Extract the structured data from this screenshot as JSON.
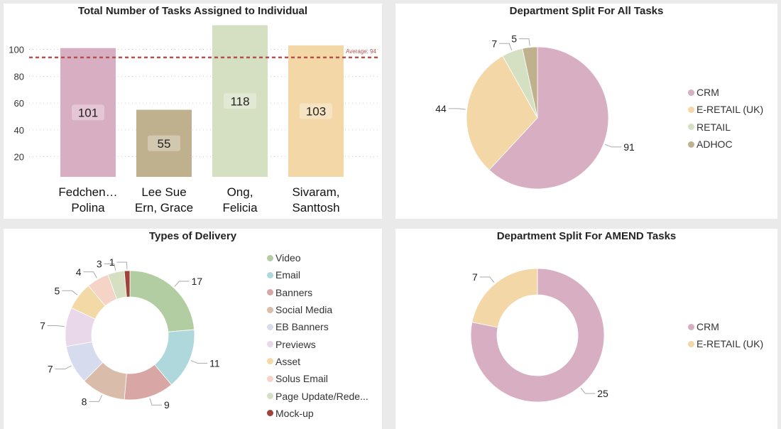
{
  "chart_data": [
    {
      "type": "bar",
      "title": "Total Number of Tasks Assigned to Individual",
      "categories": [
        "Fedchen… Polina",
        "Lee Sue Ern, Grace",
        "Ong, Felicia",
        "Sivaram, Santtosh"
      ],
      "category_lines": [
        [
          "Fedchen…",
          "Polina"
        ],
        [
          "Lee Sue",
          "Ern, Grace"
        ],
        [
          "Ong,",
          "Felicia"
        ],
        [
          "Sivaram,",
          "Santtosh"
        ]
      ],
      "values": [
        101,
        55,
        118,
        103
      ],
      "colors": [
        "#d8aec2",
        "#bfb18e",
        "#d5dfc2",
        "#f3d7a7"
      ],
      "yticks": [
        "20",
        "40",
        "60",
        "80",
        "100"
      ],
      "ylim": [
        5,
        122
      ],
      "grid": true,
      "reference_line": {
        "label": "Average: 94",
        "value": 94,
        "color": "#b5504e"
      }
    },
    {
      "type": "pie",
      "title": "Department Split For All Tasks",
      "labels": [
        "CRM",
        "E-RETAIL (UK)",
        "RETAIL",
        "ADHOC"
      ],
      "values": [
        91,
        44,
        7,
        5
      ],
      "colors": [
        "#d8aec2",
        "#f3d7a7",
        "#d5dfc2",
        "#bfb18e"
      ],
      "legend": "right"
    },
    {
      "type": "donut",
      "title": "Types of Delivery",
      "labels": [
        "Video",
        "Email",
        "Banners",
        "Social Media",
        "EB Banners",
        "Previews",
        "Asset",
        "Solus Email",
        "Page Update/Rede...",
        "Mock-up"
      ],
      "values": [
        17,
        11,
        9,
        8,
        7,
        7,
        5,
        4,
        3,
        1
      ],
      "colors": [
        "#b3cda3",
        "#afd8dc",
        "#d9a6a6",
        "#d9bca9",
        "#d6dbee",
        "#e8d8ea",
        "#f3d9a6",
        "#f5d3c7",
        "#d5dfc2",
        "#a0413a"
      ],
      "legend": "right"
    },
    {
      "type": "donut",
      "title": "Department Split For AMEND Tasks",
      "labels": [
        "CRM",
        "E-RETAIL (UK)"
      ],
      "values": [
        25,
        7
      ],
      "colors": [
        "#d8aec2",
        "#f3d7a7"
      ],
      "legend": "right"
    }
  ]
}
